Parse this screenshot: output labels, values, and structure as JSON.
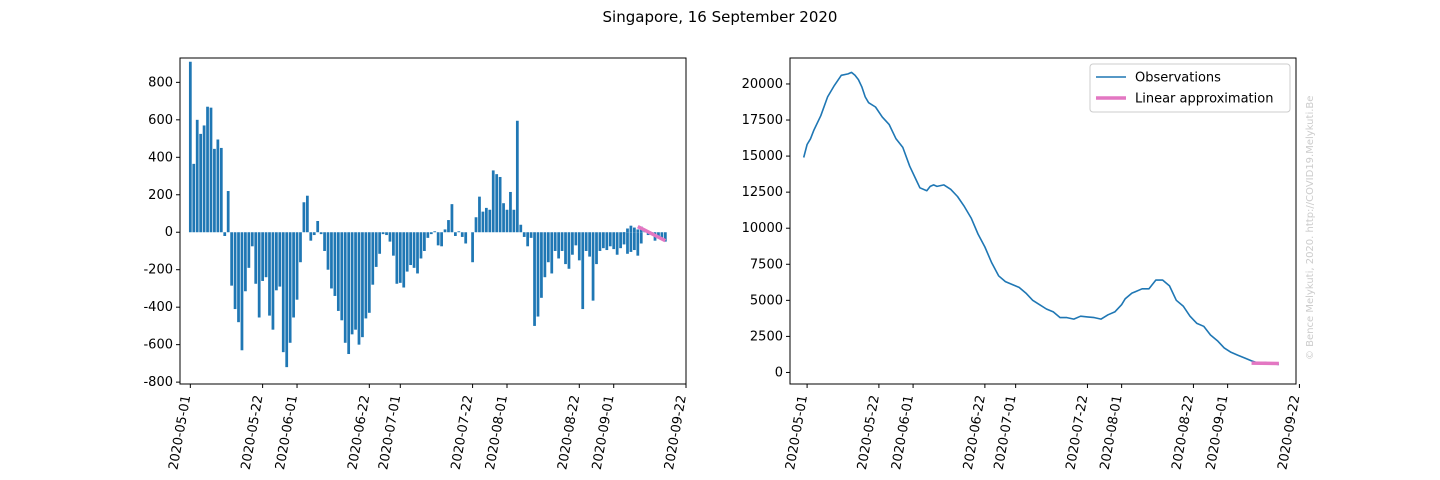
{
  "figure": {
    "title": "Singapore, 16 September 2020",
    "watermark": "© Bence Melykuti, 2020. http://COVID19.Melykuti.Be",
    "colors": {
      "bars": "#1f77b4",
      "observations": "#1f77b4",
      "linear": "#e377c2",
      "axis": "#000000",
      "watermark": "#cccccc"
    }
  },
  "chart_data": [
    {
      "type": "bar",
      "title": "",
      "xlabel": "",
      "ylabel": "",
      "x_start": "2020-05-01",
      "x_end": "2020-09-16",
      "xlim": [
        "2020-04-28",
        "2020-09-22"
      ],
      "ylim": [
        -810,
        930
      ],
      "xticks": [
        "2020-05-01",
        "2020-05-22",
        "2020-06-01",
        "2020-06-22",
        "2020-07-01",
        "2020-07-22",
        "2020-08-01",
        "2020-08-22",
        "2020-09-01",
        "2020-09-22"
      ],
      "yticks": [
        -800,
        -600,
        -400,
        -200,
        0,
        200,
        400,
        600,
        800
      ],
      "values": [
        910,
        365,
        600,
        525,
        570,
        670,
        665,
        445,
        495,
        450,
        -20,
        220,
        -285,
        -410,
        -480,
        -630,
        -315,
        -190,
        -75,
        -275,
        -455,
        -260,
        -240,
        -445,
        -520,
        -310,
        -290,
        -640,
        -720,
        -590,
        -455,
        -360,
        -160,
        160,
        195,
        -45,
        -15,
        60,
        -10,
        -100,
        -200,
        -300,
        -340,
        -420,
        -470,
        -590,
        -650,
        -545,
        -520,
        -600,
        -560,
        -460,
        -430,
        -280,
        -185,
        -115,
        -10,
        -15,
        -50,
        -125,
        -275,
        -270,
        -295,
        -210,
        -175,
        -190,
        -220,
        -140,
        -100,
        -30,
        -10,
        5,
        -70,
        -75,
        15,
        65,
        150,
        -20,
        5,
        -25,
        -60,
        0,
        -160,
        80,
        190,
        110,
        130,
        120,
        330,
        310,
        295,
        155,
        120,
        215,
        120,
        595,
        40,
        -25,
        -75,
        -30,
        -500,
        -450,
        -350,
        -240,
        -160,
        -220,
        -100,
        -140,
        -100,
        -170,
        -195,
        -120,
        -70,
        -150,
        -410,
        -100,
        -130,
        -365,
        -170,
        -100,
        -85,
        -95,
        -75,
        -90,
        -120,
        -85,
        -65,
        -115,
        -105,
        -95,
        -125,
        -60,
        0,
        0,
        0,
        0
      ],
      "observed_tail": {
        "x": [
          "2020-09-04",
          "2020-09-05",
          "2020-09-06",
          "2020-09-07",
          "2020-09-08",
          "2020-09-09",
          "2020-09-10",
          "2020-09-11",
          "2020-09-12",
          "2020-09-13",
          "2020-09-14",
          "2020-09-15",
          "2020-09-16"
        ],
        "values": [
          -10,
          20,
          35,
          25,
          15,
          30,
          5,
          -15,
          -5,
          -45,
          -20,
          -30,
          -50
        ]
      },
      "series": [
        {
          "name": "Linear approximation",
          "x": [
            "2020-09-08",
            "2020-09-16"
          ],
          "values": [
            30,
            -45
          ]
        }
      ]
    },
    {
      "type": "line",
      "title": "",
      "xlabel": "",
      "ylabel": "",
      "xlim": [
        "2020-04-26",
        "2020-09-21"
      ],
      "ylim": [
        -800,
        21800
      ],
      "xticks": [
        "2020-05-01",
        "2020-05-22",
        "2020-06-01",
        "2020-06-22",
        "2020-07-01",
        "2020-07-22",
        "2020-08-01",
        "2020-08-22",
        "2020-09-01",
        "2020-09-22"
      ],
      "yticks": [
        0,
        2500,
        5000,
        7500,
        10000,
        12500,
        15000,
        17500,
        20000
      ],
      "legend": "upper right",
      "series": [
        {
          "name": "Observations",
          "x": [
            "2020-04-30",
            "2020-05-01",
            "2020-05-02",
            "2020-05-03",
            "2020-05-05",
            "2020-05-07",
            "2020-05-09",
            "2020-05-11",
            "2020-05-13",
            "2020-05-14",
            "2020-05-15",
            "2020-05-16",
            "2020-05-17",
            "2020-05-18",
            "2020-05-19",
            "2020-05-21",
            "2020-05-23",
            "2020-05-25",
            "2020-05-27",
            "2020-05-29",
            "2020-05-31",
            "2020-06-02",
            "2020-06-03",
            "2020-06-05",
            "2020-06-06",
            "2020-06-07",
            "2020-06-08",
            "2020-06-10",
            "2020-06-12",
            "2020-06-14",
            "2020-06-16",
            "2020-06-18",
            "2020-06-20",
            "2020-06-22",
            "2020-06-24",
            "2020-06-26",
            "2020-06-28",
            "2020-06-30",
            "2020-07-02",
            "2020-07-04",
            "2020-07-06",
            "2020-07-08",
            "2020-07-10",
            "2020-07-12",
            "2020-07-14",
            "2020-07-16",
            "2020-07-18",
            "2020-07-20",
            "2020-07-22",
            "2020-07-24",
            "2020-07-26",
            "2020-07-28",
            "2020-07-30",
            "2020-08-01",
            "2020-08-02",
            "2020-08-03",
            "2020-08-04",
            "2020-08-05",
            "2020-08-07",
            "2020-08-09",
            "2020-08-11",
            "2020-08-13",
            "2020-08-15",
            "2020-08-17",
            "2020-08-19",
            "2020-08-21",
            "2020-08-23",
            "2020-08-25",
            "2020-08-27",
            "2020-08-29",
            "2020-08-31",
            "2020-09-02",
            "2020-09-04",
            "2020-09-06",
            "2020-09-08",
            "2020-09-10",
            "2020-09-12",
            "2020-09-14",
            "2020-09-16"
          ],
          "values": [
            14900,
            15800,
            16200,
            16800,
            17800,
            19100,
            19900,
            20600,
            20700,
            20800,
            20600,
            20300,
            19800,
            19100,
            18700,
            18400,
            17700,
            17200,
            16200,
            15600,
            14300,
            13300,
            12800,
            12600,
            12900,
            13000,
            12900,
            13000,
            12700,
            12200,
            11500,
            10700,
            9600,
            8700,
            7600,
            6700,
            6300,
            6100,
            5900,
            5500,
            5000,
            4700,
            4400,
            4200,
            3800,
            3800,
            3700,
            3900,
            3850,
            3800,
            3700,
            4000,
            4200,
            4700,
            5100,
            5300,
            5500,
            5600,
            5800,
            5800,
            6400,
            6400,
            6000,
            5000,
            4600,
            3900,
            3400,
            3200,
            2600,
            2200,
            1700,
            1400,
            1200,
            1000,
            800,
            650,
            700,
            600,
            550
          ]
        },
        {
          "name": "Linear approximation",
          "x": [
            "2020-09-08",
            "2020-09-16"
          ],
          "values": [
            650,
            620
          ]
        }
      ]
    }
  ]
}
